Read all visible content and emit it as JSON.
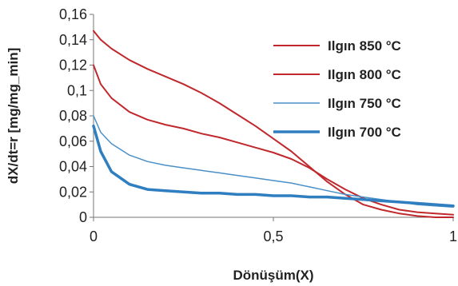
{
  "chart_data": {
    "type": "line",
    "xlabel": "Dönüşüm(X)",
    "ylabel": "dX/dt=r  [mg/mg_min]",
    "xlim": [
      0,
      1
    ],
    "ylim": [
      0,
      0.16
    ],
    "x_ticks": [
      0,
      0.5,
      1
    ],
    "x_tick_labels": [
      "0",
      "0,5",
      "1"
    ],
    "y_ticks": [
      0,
      0.02,
      0.04,
      0.06,
      0.08,
      0.1,
      0.12,
      0.14,
      0.16
    ],
    "y_tick_labels": [
      "0",
      "0,02",
      "0,04",
      "0,06",
      "0,08",
      "0,1",
      "0,12",
      "0,14",
      "0,16"
    ],
    "grid": false,
    "legend_position": "top-right",
    "series": [
      {
        "name": "Ilgın 850 °C",
        "color": "#c0282d",
        "line_width": 2,
        "x": [
          0,
          0.02,
          0.05,
          0.1,
          0.15,
          0.2,
          0.25,
          0.3,
          0.35,
          0.4,
          0.45,
          0.5,
          0.55,
          0.6,
          0.65,
          0.7,
          0.75,
          0.8,
          0.85,
          0.9,
          0.95,
          1.0
        ],
        "y": [
          0.147,
          0.14,
          0.133,
          0.124,
          0.117,
          0.111,
          0.105,
          0.098,
          0.09,
          0.081,
          0.072,
          0.062,
          0.052,
          0.04,
          0.028,
          0.018,
          0.01,
          0.006,
          0.003,
          0.001,
          0.0,
          0.0
        ]
      },
      {
        "name": "Ilgın 800  °C",
        "color": "#c0282d",
        "line_width": 2,
        "x": [
          0,
          0.02,
          0.05,
          0.1,
          0.15,
          0.2,
          0.25,
          0.3,
          0.35,
          0.4,
          0.45,
          0.5,
          0.55,
          0.6,
          0.65,
          0.7,
          0.75,
          0.8,
          0.85,
          0.9,
          0.95,
          1.0
        ],
        "y": [
          0.12,
          0.105,
          0.094,
          0.083,
          0.077,
          0.073,
          0.07,
          0.066,
          0.063,
          0.059,
          0.055,
          0.051,
          0.046,
          0.039,
          0.03,
          0.022,
          0.015,
          0.01,
          0.006,
          0.004,
          0.003,
          0.002
        ]
      },
      {
        "name": "Ilgın 750 °C",
        "color": "#4a90c8",
        "line_width": 1.5,
        "x": [
          0,
          0.02,
          0.05,
          0.1,
          0.15,
          0.2,
          0.25,
          0.3,
          0.35,
          0.4,
          0.45,
          0.5,
          0.55,
          0.6,
          0.65,
          0.7,
          0.75,
          0.8,
          0.85,
          0.9,
          0.95,
          1.0
        ],
        "y": [
          0.08,
          0.067,
          0.058,
          0.049,
          0.044,
          0.041,
          0.039,
          0.037,
          0.035,
          0.033,
          0.031,
          0.029,
          0.027,
          0.024,
          0.021,
          0.018,
          0.016,
          0.014,
          0.012,
          0.01,
          0.009,
          0.008
        ]
      },
      {
        "name": "Ilgın 700 °C",
        "color": "#2f7ec0",
        "line_width": 3.5,
        "x": [
          0,
          0.02,
          0.05,
          0.1,
          0.15,
          0.2,
          0.25,
          0.3,
          0.35,
          0.4,
          0.45,
          0.5,
          0.55,
          0.6,
          0.65,
          0.7,
          0.75,
          0.8,
          0.85,
          0.9,
          0.95,
          1.0
        ],
        "y": [
          0.072,
          0.052,
          0.036,
          0.026,
          0.022,
          0.021,
          0.02,
          0.019,
          0.019,
          0.018,
          0.018,
          0.017,
          0.017,
          0.016,
          0.016,
          0.015,
          0.014,
          0.013,
          0.012,
          0.011,
          0.01,
          0.009
        ]
      }
    ]
  }
}
